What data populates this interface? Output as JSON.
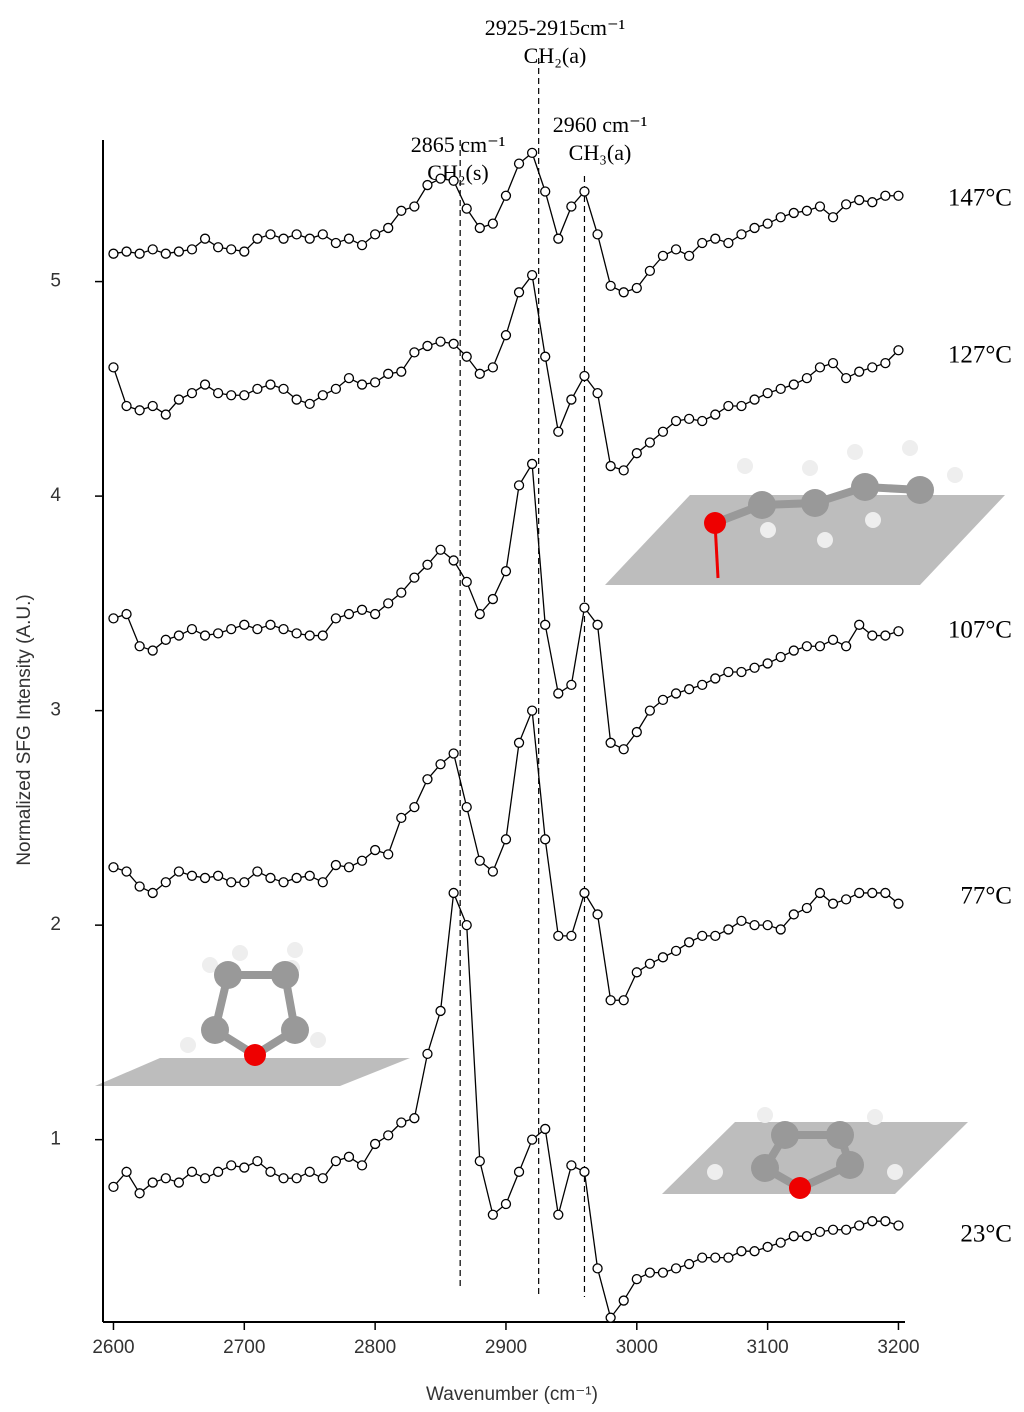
{
  "chart_data": {
    "type": "line",
    "x_label": "Wavenumber (cm⁻¹)",
    "y_label": "Normalized SFG Intensity (A.U.)",
    "xlim": [
      2592,
      3205
    ],
    "ylim": [
      0.15,
      5.66
    ],
    "xticks": [
      2600,
      2700,
      2800,
      2900,
      3000,
      3100,
      3200
    ],
    "yticks": [
      1,
      2,
      3,
      4,
      5
    ],
    "grid": false,
    "x": [
      2600,
      2610,
      2620,
      2630,
      2640,
      2650,
      2660,
      2670,
      2680,
      2690,
      2700,
      2710,
      2720,
      2730,
      2740,
      2750,
      2760,
      2770,
      2780,
      2790,
      2800,
      2810,
      2820,
      2830,
      2840,
      2850,
      2860,
      2870,
      2880,
      2890,
      2900,
      2910,
      2920,
      2930,
      2940,
      2950,
      2960,
      2970,
      2980,
      2990,
      3000,
      3010,
      3020,
      3030,
      3040,
      3050,
      3060,
      3070,
      3080,
      3090,
      3100,
      3110,
      3120,
      3130,
      3140,
      3150,
      3160,
      3170,
      3180,
      3190,
      3200
    ],
    "series": [
      {
        "name": "147°C",
        "color": "#000000",
        "values": [
          5.13,
          5.14,
          5.13,
          5.15,
          5.13,
          5.14,
          5.15,
          5.2,
          5.16,
          5.15,
          5.14,
          5.2,
          5.22,
          5.2,
          5.22,
          5.2,
          5.22,
          5.18,
          5.2,
          5.17,
          5.22,
          5.25,
          5.33,
          5.35,
          5.45,
          5.48,
          5.47,
          5.34,
          5.25,
          5.27,
          5.4,
          5.55,
          5.6,
          5.42,
          5.2,
          5.35,
          5.42,
          5.22,
          4.98,
          4.95,
          4.97,
          5.05,
          5.12,
          5.15,
          5.12,
          5.18,
          5.2,
          5.18,
          5.22,
          5.25,
          5.27,
          5.3,
          5.32,
          5.33,
          5.35,
          5.3,
          5.36,
          5.38,
          5.37,
          5.4,
          5.4
        ]
      },
      {
        "name": "127°C",
        "color": "#000000",
        "values": [
          4.6,
          4.42,
          4.4,
          4.42,
          4.38,
          4.45,
          4.48,
          4.52,
          4.48,
          4.47,
          4.47,
          4.5,
          4.52,
          4.5,
          4.45,
          4.43,
          4.47,
          4.5,
          4.55,
          4.52,
          4.53,
          4.57,
          4.58,
          4.67,
          4.7,
          4.72,
          4.71,
          4.65,
          4.57,
          4.6,
          4.75,
          4.95,
          5.03,
          4.65,
          4.3,
          4.45,
          4.56,
          4.48,
          4.14,
          4.12,
          4.2,
          4.25,
          4.3,
          4.35,
          4.36,
          4.35,
          4.38,
          4.42,
          4.42,
          4.45,
          4.48,
          4.5,
          4.52,
          4.55,
          4.6,
          4.62,
          4.55,
          4.58,
          4.6,
          4.62,
          4.68
        ]
      },
      {
        "name": "107°C",
        "color": "#000000",
        "values": [
          3.43,
          3.45,
          3.3,
          3.28,
          3.33,
          3.35,
          3.38,
          3.35,
          3.36,
          3.38,
          3.4,
          3.38,
          3.4,
          3.38,
          3.36,
          3.35,
          3.35,
          3.43,
          3.45,
          3.47,
          3.45,
          3.5,
          3.55,
          3.62,
          3.68,
          3.75,
          3.7,
          3.6,
          3.45,
          3.52,
          3.65,
          4.05,
          4.15,
          3.4,
          3.08,
          3.12,
          3.48,
          3.4,
          2.85,
          2.82,
          2.9,
          3.0,
          3.05,
          3.08,
          3.1,
          3.12,
          3.15,
          3.18,
          3.18,
          3.2,
          3.22,
          3.25,
          3.28,
          3.3,
          3.3,
          3.33,
          3.3,
          3.4,
          3.35,
          3.35,
          3.37
        ]
      },
      {
        "name": "77°C",
        "color": "#000000",
        "values": [
          2.27,
          2.25,
          2.18,
          2.15,
          2.2,
          2.25,
          2.23,
          2.22,
          2.23,
          2.2,
          2.2,
          2.25,
          2.22,
          2.2,
          2.22,
          2.23,
          2.2,
          2.28,
          2.27,
          2.3,
          2.35,
          2.33,
          2.5,
          2.55,
          2.68,
          2.75,
          2.8,
          2.55,
          2.3,
          2.25,
          2.4,
          2.85,
          3.0,
          2.4,
          1.95,
          1.95,
          2.15,
          2.05,
          1.65,
          1.65,
          1.78,
          1.82,
          1.85,
          1.88,
          1.92,
          1.95,
          1.95,
          1.98,
          2.02,
          2.0,
          2.0,
          1.98,
          2.05,
          2.08,
          2.15,
          2.1,
          2.12,
          2.15,
          2.15,
          2.15,
          2.1
        ]
      },
      {
        "name": "23°C",
        "color": "#000000",
        "values": [
          0.78,
          0.85,
          0.75,
          0.8,
          0.82,
          0.8,
          0.85,
          0.82,
          0.85,
          0.88,
          0.87,
          0.9,
          0.85,
          0.82,
          0.82,
          0.85,
          0.82,
          0.9,
          0.92,
          0.88,
          0.98,
          1.02,
          1.08,
          1.1,
          1.4,
          1.6,
          2.15,
          2.0,
          0.9,
          0.65,
          0.7,
          0.85,
          1.0,
          1.05,
          0.65,
          0.88,
          0.85,
          0.4,
          0.17,
          0.25,
          0.35,
          0.38,
          0.38,
          0.4,
          0.42,
          0.45,
          0.45,
          0.45,
          0.48,
          0.48,
          0.5,
          0.52,
          0.55,
          0.55,
          0.57,
          0.58,
          0.58,
          0.6,
          0.62,
          0.62,
          0.6
        ]
      }
    ],
    "annotations": [
      {
        "x": 2865,
        "lines": [
          "2865 cm⁻¹",
          "CH₂(s)"
        ]
      },
      {
        "x": 2925,
        "lines": [
          "2925-2915cm⁻¹",
          "CH₂(a)"
        ]
      },
      {
        "x": 2960,
        "lines": [
          "2960 cm⁻¹",
          "CH₃(a)"
        ]
      }
    ]
  }
}
